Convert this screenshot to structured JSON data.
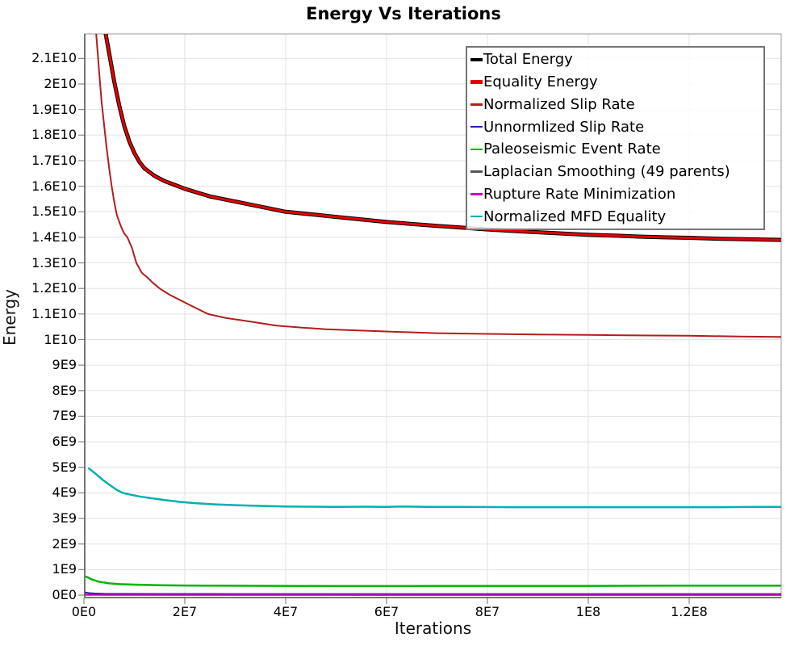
{
  "chart_data": {
    "type": "line",
    "title": "Energy Vs Iterations",
    "xlabel": "Iterations",
    "ylabel": "Energy",
    "grid": true,
    "legend_position": "top-right",
    "xlim": [
      0,
      138200000.0
    ],
    "ylim": [
      -100000000.0,
      21950000000.0
    ],
    "x_ticks": [
      {
        "label": "0E0",
        "value": 0
      },
      {
        "label": "2E7",
        "value": 20000000.0
      },
      {
        "label": "4E7",
        "value": 40000000.0
      },
      {
        "label": "6E7",
        "value": 60000000.0
      },
      {
        "label": "8E7",
        "value": 80000000.0
      },
      {
        "label": "1E8",
        "value": 100000000.0
      },
      {
        "label": "1.2E8",
        "value": 120000000.0
      }
    ],
    "y_ticks": [
      {
        "label": "0E0",
        "value": 0
      },
      {
        "label": "1E9",
        "value": 1000000000.0
      },
      {
        "label": "2E9",
        "value": 2000000000.0
      },
      {
        "label": "3E9",
        "value": 3000000000.0
      },
      {
        "label": "4E9",
        "value": 4000000000.0
      },
      {
        "label": "5E9",
        "value": 5000000000.0
      },
      {
        "label": "6E9",
        "value": 6000000000.0
      },
      {
        "label": "7E9",
        "value": 7000000000.0
      },
      {
        "label": "8E9",
        "value": 8000000000.0
      },
      {
        "label": "9E9",
        "value": 9000000000.0
      },
      {
        "label": "1E10",
        "value": 10000000000.0
      },
      {
        "label": "1.1E10",
        "value": 11000000000.0
      },
      {
        "label": "1.2E10",
        "value": 12000000000.0
      },
      {
        "label": "1.3E10",
        "value": 13000000000.0
      },
      {
        "label": "1.4E10",
        "value": 14000000000.0
      },
      {
        "label": "1.5E10",
        "value": 15000000000.0
      },
      {
        "label": "1.6E10",
        "value": 16000000000.0
      },
      {
        "label": "1.7E10",
        "value": 17000000000.0
      },
      {
        "label": "1.8E10",
        "value": 18000000000.0
      },
      {
        "label": "1.9E10",
        "value": 19000000000.0
      },
      {
        "label": "2E10",
        "value": 20000000000.0
      },
      {
        "label": "2.1E10",
        "value": 21000000000.0
      }
    ],
    "series": [
      {
        "name": "Total Energy",
        "color": "#000000",
        "width": 5,
        "points": [
          [
            3000000.0,
            23500000000.0
          ],
          [
            4000000.0,
            22300000000.0
          ],
          [
            5000000.0,
            21200000000.0
          ],
          [
            6000000.0,
            20100000000.0
          ],
          [
            7000000.0,
            19150000000.0
          ],
          [
            8000000.0,
            18350000000.0
          ],
          [
            9000000.0,
            17750000000.0
          ],
          [
            10000000.0,
            17300000000.0
          ],
          [
            11000000.0,
            16950000000.0
          ],
          [
            12000000.0,
            16700000000.0
          ],
          [
            14000000.0,
            16400000000.0
          ],
          [
            16000000.0,
            16200000000.0
          ],
          [
            18000000.0,
            16050000000.0
          ],
          [
            20000000.0,
            15900000000.0
          ],
          [
            25000000.0,
            15600000000.0
          ],
          [
            30000000.0,
            15400000000.0
          ],
          [
            35000000.0,
            15200000000.0
          ],
          [
            40000000.0,
            15000000000.0
          ],
          [
            45000000.0,
            14900000000.0
          ],
          [
            50000000.0,
            14800000000.0
          ],
          [
            55000000.0,
            14700000000.0
          ],
          [
            60000000.0,
            14600000000.0
          ],
          [
            65000000.0,
            14520000000.0
          ],
          [
            70000000.0,
            14450000000.0
          ],
          [
            75000000.0,
            14380000000.0
          ],
          [
            80000000.0,
            14310000000.0
          ],
          [
            85000000.0,
            14250000000.0
          ],
          [
            90000000.0,
            14200000000.0
          ],
          [
            95000000.0,
            14150000000.0
          ],
          [
            100000000.0,
            14100000000.0
          ],
          [
            105000000.0,
            14070000000.0
          ],
          [
            110000000.0,
            14030000000.0
          ],
          [
            115000000.0,
            14000000000.0
          ],
          [
            120000000.0,
            13980000000.0
          ],
          [
            125000000.0,
            13950000000.0
          ],
          [
            130000000.0,
            13930000000.0
          ],
          [
            135000000.0,
            13910000000.0
          ],
          [
            138200000.0,
            13900000000.0
          ]
        ]
      },
      {
        "name": "Equality Energy",
        "color": "#e60000",
        "width": 3,
        "points": [
          [
            3000000.0,
            23500000000.0
          ],
          [
            4000000.0,
            22300000000.0
          ],
          [
            5000000.0,
            21200000000.0
          ],
          [
            6000000.0,
            20100000000.0
          ],
          [
            7000000.0,
            19150000000.0
          ],
          [
            8000000.0,
            18350000000.0
          ],
          [
            9000000.0,
            17750000000.0
          ],
          [
            10000000.0,
            17300000000.0
          ],
          [
            11000000.0,
            16950000000.0
          ],
          [
            12000000.0,
            16700000000.0
          ],
          [
            14000000.0,
            16400000000.0
          ],
          [
            16000000.0,
            16200000000.0
          ],
          [
            18000000.0,
            16050000000.0
          ],
          [
            20000000.0,
            15900000000.0
          ],
          [
            25000000.0,
            15600000000.0
          ],
          [
            30000000.0,
            15400000000.0
          ],
          [
            35000000.0,
            15200000000.0
          ],
          [
            40000000.0,
            15000000000.0
          ],
          [
            45000000.0,
            14900000000.0
          ],
          [
            50000000.0,
            14800000000.0
          ],
          [
            55000000.0,
            14700000000.0
          ],
          [
            60000000.0,
            14600000000.0
          ],
          [
            65000000.0,
            14520000000.0
          ],
          [
            70000000.0,
            14450000000.0
          ],
          [
            75000000.0,
            14380000000.0
          ],
          [
            80000000.0,
            14310000000.0
          ],
          [
            85000000.0,
            14250000000.0
          ],
          [
            90000000.0,
            14200000000.0
          ],
          [
            95000000.0,
            14150000000.0
          ],
          [
            100000000.0,
            14100000000.0
          ],
          [
            105000000.0,
            14070000000.0
          ],
          [
            110000000.0,
            14030000000.0
          ],
          [
            115000000.0,
            14000000000.0
          ],
          [
            120000000.0,
            13980000000.0
          ],
          [
            125000000.0,
            13950000000.0
          ],
          [
            130000000.0,
            13930000000.0
          ],
          [
            135000000.0,
            13910000000.0
          ],
          [
            138200000.0,
            13900000000.0
          ]
        ]
      },
      {
        "name": "Normalized Slip Rate",
        "color": "#b21e1e",
        "width": 2,
        "points": [
          [
            2000000.0,
            23000000000.0
          ],
          [
            2500000.0,
            21800000000.0
          ],
          [
            3000000.0,
            20500000000.0
          ],
          [
            3500000.0,
            19300000000.0
          ],
          [
            4000000.0,
            18400000000.0
          ],
          [
            4500000.0,
            17500000000.0
          ],
          [
            5000000.0,
            16700000000.0
          ],
          [
            5500000.0,
            16000000000.0
          ],
          [
            6000000.0,
            15400000000.0
          ],
          [
            6500000.0,
            14900000000.0
          ],
          [
            7000000.0,
            14600000000.0
          ],
          [
            7500000.0,
            14350000000.0
          ],
          [
            8000000.0,
            14150000000.0
          ],
          [
            8600000.0,
            14000000000.0
          ],
          [
            9500000.0,
            13600000000.0
          ],
          [
            10400000.0,
            13000000000.0
          ],
          [
            11500000.0,
            12600000000.0
          ],
          [
            12500000.0,
            12450000000.0
          ],
          [
            13500000.0,
            12250000000.0
          ],
          [
            15000000.0,
            12000000000.0
          ],
          [
            17000000.0,
            11750000000.0
          ],
          [
            19500000.0,
            11500000000.0
          ],
          [
            22000000.0,
            11250000000.0
          ],
          [
            24600000.0,
            11000000000.0
          ],
          [
            28000000.0,
            10850000000.0
          ],
          [
            33000000.0,
            10700000000.0
          ],
          [
            38000000.0,
            10550000000.0
          ],
          [
            43000000.0,
            10470000000.0
          ],
          [
            48000000.0,
            10400000000.0
          ],
          [
            55000000.0,
            10350000000.0
          ],
          [
            62000000.0,
            10300000000.0
          ],
          [
            70000000.0,
            10250000000.0
          ],
          [
            80000000.0,
            10220000000.0
          ],
          [
            90000000.0,
            10200000000.0
          ],
          [
            100000000.0,
            10180000000.0
          ],
          [
            110000000.0,
            10160000000.0
          ],
          [
            120000000.0,
            10150000000.0
          ],
          [
            130000000.0,
            10120000000.0
          ],
          [
            138200000.0,
            10100000000.0
          ]
        ]
      },
      {
        "name": "Unnormlized Slip Rate",
        "color": "#2424b4",
        "width": 2,
        "points": [
          [
            300000.0,
            100000000.0
          ],
          [
            1000000.0,
            80000000.0
          ],
          [
            2000000.0,
            65000000.0
          ],
          [
            4000000.0,
            55000000.0
          ],
          [
            8000000.0,
            50000000.0
          ],
          [
            15000000.0,
            46000000.0
          ],
          [
            30000000.0,
            45000000.0
          ],
          [
            60000000.0,
            45000000.0
          ],
          [
            100000000.0,
            45000000.0
          ],
          [
            138200000.0,
            45000000.0
          ]
        ]
      },
      {
        "name": "Paleoseismic Event Rate",
        "color": "#00b400",
        "width": 2.5,
        "points": [
          [
            500000.0,
            720000000.0
          ],
          [
            1500000.0,
            620000000.0
          ],
          [
            3000000.0,
            520000000.0
          ],
          [
            5000000.0,
            460000000.0
          ],
          [
            7000000.0,
            430000000.0
          ],
          [
            10000000.0,
            410000000.0
          ],
          [
            15000000.0,
            390000000.0
          ],
          [
            20000000.0,
            375000000.0
          ],
          [
            30000000.0,
            365000000.0
          ],
          [
            40000000.0,
            360000000.0
          ],
          [
            50000000.0,
            355000000.0
          ],
          [
            60000000.0,
            355000000.0
          ],
          [
            70000000.0,
            360000000.0
          ],
          [
            80000000.0,
            360000000.0
          ],
          [
            90000000.0,
            360000000.0
          ],
          [
            100000000.0,
            360000000.0
          ],
          [
            110000000.0,
            365000000.0
          ],
          [
            120000000.0,
            370000000.0
          ],
          [
            130000000.0,
            370000000.0
          ],
          [
            138200000.0,
            370000000.0
          ]
        ]
      },
      {
        "name": "Laplacian Smoothing (49 parents)",
        "color": "#555555",
        "width": 2,
        "points": [
          [
            300000.0,
            15000000.0
          ],
          [
            20000000.0,
            12000000.0
          ],
          [
            60000000.0,
            10000000.0
          ],
          [
            100000000.0,
            10000000.0
          ],
          [
            138200000.0,
            10000000.0
          ]
        ]
      },
      {
        "name": "Rupture Rate Minimization",
        "color": "#c800c8",
        "width": 2,
        "points": [
          [
            300000.0,
            8000000.0
          ],
          [
            20000000.0,
            5000000.0
          ],
          [
            60000000.0,
            5000000.0
          ],
          [
            100000000.0,
            5000000.0
          ],
          [
            138200000.0,
            5000000.0
          ]
        ]
      },
      {
        "name": "Normalized MFD Equality",
        "color": "#00b0b0",
        "width": 2.5,
        "points": [
          [
            1000000.0,
            4950000000.0
          ],
          [
            2000000.0,
            4800000000.0
          ],
          [
            3800000.0,
            4500000000.0
          ],
          [
            5400000.0,
            4270000000.0
          ],
          [
            6500000.0,
            4120000000.0
          ],
          [
            7700000.0,
            4000000000.0
          ],
          [
            9000000.0,
            3940000000.0
          ],
          [
            11000000.0,
            3860000000.0
          ],
          [
            13000000.0,
            3800000000.0
          ],
          [
            16000000.0,
            3720000000.0
          ],
          [
            19000000.0,
            3650000000.0
          ],
          [
            22000000.0,
            3600000000.0
          ],
          [
            26000000.0,
            3550000000.0
          ],
          [
            30000000.0,
            3520000000.0
          ],
          [
            35000000.0,
            3490000000.0
          ],
          [
            40000000.0,
            3470000000.0
          ],
          [
            45000000.0,
            3460000000.0
          ],
          [
            50000000.0,
            3450000000.0
          ],
          [
            56000000.0,
            3460000000.0
          ],
          [
            60000000.0,
            3450000000.0
          ],
          [
            63000000.0,
            3470000000.0
          ],
          [
            68000000.0,
            3450000000.0
          ],
          [
            75000000.0,
            3450000000.0
          ],
          [
            85000000.0,
            3440000000.0
          ],
          [
            95000000.0,
            3440000000.0
          ],
          [
            105000000.0,
            3440000000.0
          ],
          [
            115000000.0,
            3440000000.0
          ],
          [
            125000000.0,
            3440000000.0
          ],
          [
            133000000.0,
            3450000000.0
          ],
          [
            138200000.0,
            3450000000.0
          ]
        ]
      }
    ],
    "styles": {
      "grid_color": "#e2e2e2",
      "border_color": "#9a9a9a",
      "axis_color": "#4a4a4a",
      "tick_color": "#888888",
      "legend_border_color": "#757575"
    }
  }
}
